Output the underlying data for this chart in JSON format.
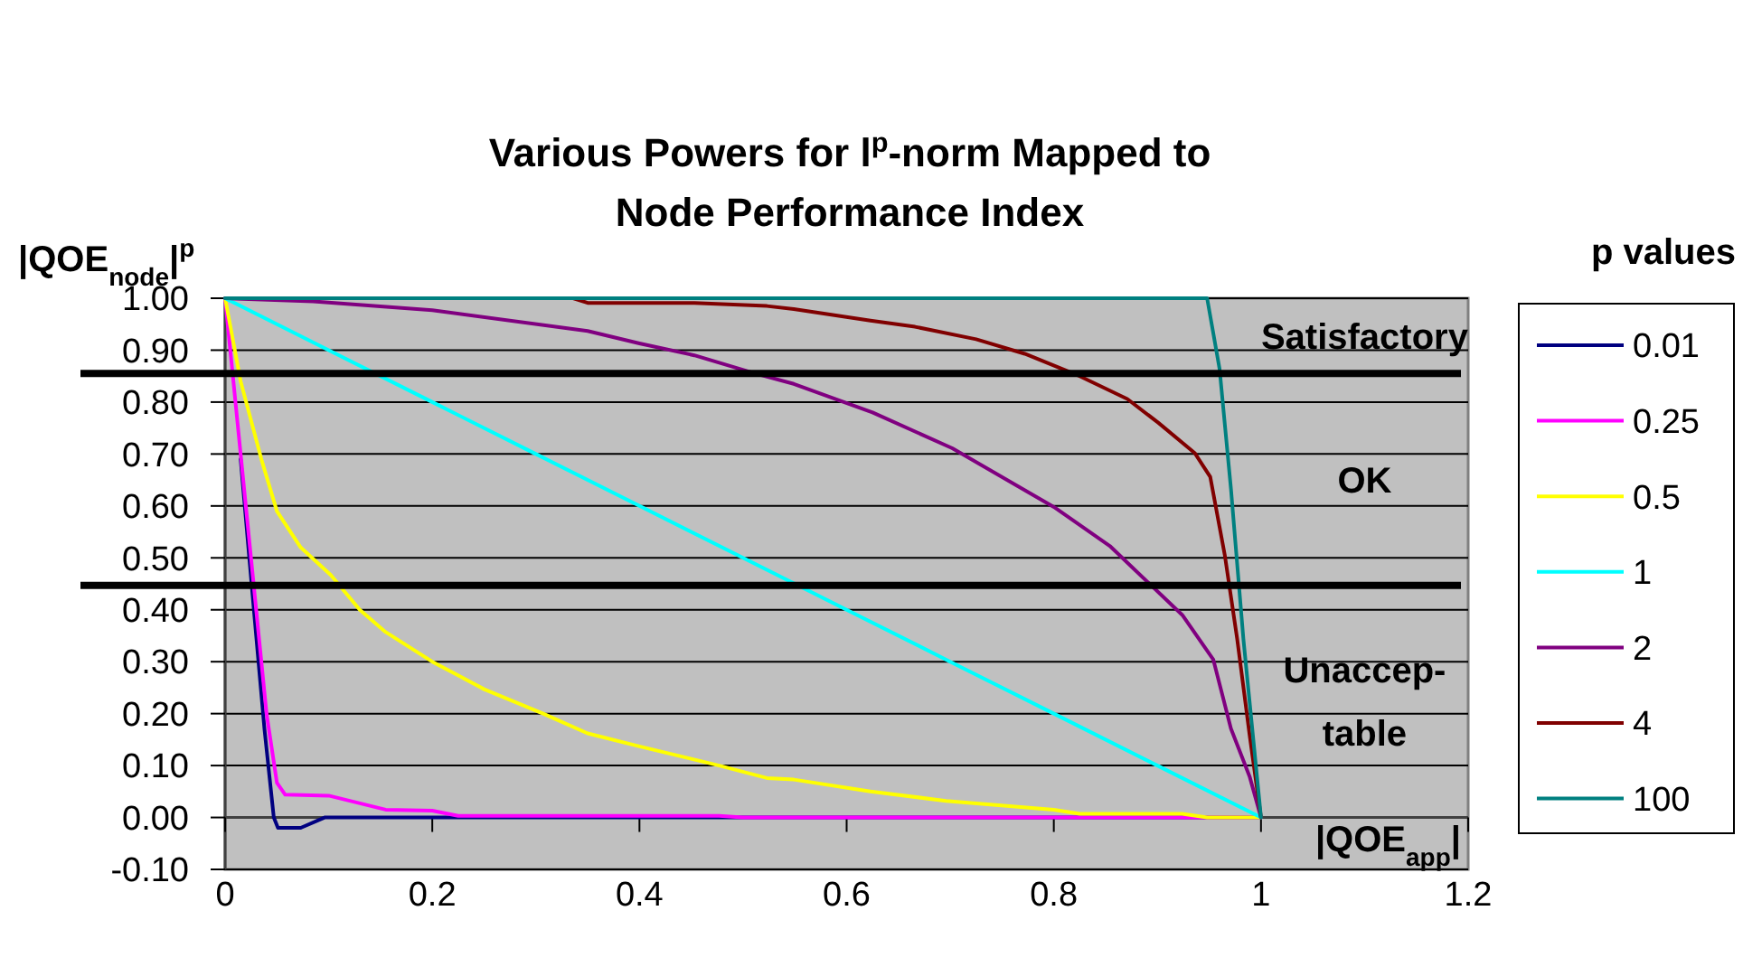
{
  "chart_data": {
    "type": "line",
    "title": "Various Powers for l$^{p}$-norm Mapped to Node Performance Index",
    "xlabel": "|QOE$_{app}$|",
    "ylabel": "|QOE$_{node}$|$^{p}$",
    "legend_title": "p values",
    "xlim": [
      0,
      1.2
    ],
    "xticks": [
      0,
      0.2,
      0.4,
      0.6,
      0.8,
      1,
      1.2
    ],
    "ylim": [
      -0.1,
      1
    ],
    "yticks": [
      {
        "value": -0.1,
        "label": "-0.10"
      },
      {
        "value": 0,
        "label": "0.00"
      },
      {
        "value": 0.1,
        "label": "0.10"
      },
      {
        "value": 0.2,
        "label": "0.20"
      },
      {
        "value": 0.3,
        "label": "0.30"
      },
      {
        "value": 0.4,
        "label": "0.40"
      },
      {
        "value": 0.5,
        "label": "0.50"
      },
      {
        "value": 0.6,
        "label": "0.60"
      },
      {
        "value": 0.7,
        "label": "0.70"
      },
      {
        "value": 0.8,
        "label": "0.80"
      },
      {
        "value": 0.9,
        "label": "0.90"
      },
      {
        "value": 1,
        "label": "1.00"
      }
    ],
    "grid": "y",
    "legend": "right",
    "marker": "none",
    "line_style": "solid",
    "ref_lines": [
      {
        "axis": "y",
        "value": 0.855,
        "color": "#000000"
      },
      {
        "axis": "y",
        "value": 0.447,
        "color": "#000000"
      }
    ],
    "annotations": [
      "Satisfactory",
      "OK",
      "Unaccep-\ntable"
    ],
    "series": [
      {
        "name": "0.01",
        "color": "#000080",
        "x": [
          0.015,
          0.026,
          0.038,
          0.047,
          0.051,
          0.073,
          0.096,
          0.2,
          0.5,
          1
        ],
        "values": [
          0.69,
          0.44,
          0.17,
          0,
          -0.02,
          -0.02,
          0,
          0,
          0,
          0
        ]
      },
      {
        "name": "0.25",
        "color": "#ff00ff",
        "x": [
          0,
          0.015,
          0.03,
          0.04,
          0.05,
          0.058,
          0.1,
          0.155,
          0.2,
          0.225,
          0.477,
          0.5,
          1
        ],
        "values": [
          1,
          0.7,
          0.4,
          0.2,
          0.067,
          0.044,
          0.042,
          0.015,
          0.013,
          0.003,
          0.003,
          0,
          0
        ]
      },
      {
        "name": "0.5",
        "color": "#ffff00",
        "x": [
          0,
          0.015,
          0.035,
          0.05,
          0.073,
          0.102,
          0.13,
          0.155,
          0.2,
          0.25,
          0.307,
          0.35,
          0.4,
          0.477,
          0.523,
          0.549,
          0.623,
          0.696,
          0.8,
          0.825,
          0.924,
          0.948,
          1
        ],
        "values": [
          1,
          0.84,
          0.69,
          0.59,
          0.52,
          0.467,
          0.4,
          0.357,
          0.3,
          0.247,
          0.2,
          0.162,
          0.137,
          0.1,
          0.076,
          0.073,
          0.05,
          0.032,
          0.015,
          0.007,
          0.007,
          0,
          0
        ]
      },
      {
        "name": "1",
        "color": "#00ffff",
        "x": [
          0,
          0.05,
          0.1,
          0.2,
          0.3,
          0.4,
          0.5,
          0.6,
          0.7,
          0.8,
          0.9,
          1
        ],
        "values": [
          1,
          0.95,
          0.9,
          0.8,
          0.7,
          0.6,
          0.5,
          0.4,
          0.3,
          0.2,
          0.1,
          0
        ]
      },
      {
        "name": "2",
        "color": "#800080",
        "x": [
          0,
          0.085,
          0.2,
          0.35,
          0.4,
          0.453,
          0.512,
          0.549,
          0.625,
          0.702,
          0.8,
          0.854,
          0.924,
          0.954,
          0.971,
          0.989,
          1
        ],
        "values": [
          1,
          0.994,
          0.977,
          0.937,
          0.913,
          0.89,
          0.855,
          0.835,
          0.78,
          0.711,
          0.598,
          0.523,
          0.39,
          0.304,
          0.171,
          0.079,
          0
        ]
      },
      {
        "name": "4",
        "color": "#800000",
        "x": [
          0.336,
          0.35,
          0.453,
          0.523,
          0.549,
          0.623,
          0.666,
          0.725,
          0.772,
          0.825,
          0.871,
          0.901,
          0.936,
          0.951,
          0.965,
          0.977,
          0.989,
          1
        ],
        "values": [
          1,
          0.991,
          0.991,
          0.985,
          0.979,
          0.957,
          0.945,
          0.921,
          0.893,
          0.85,
          0.806,
          0.76,
          0.702,
          0.656,
          0.506,
          0.344,
          0.159,
          0
        ]
      },
      {
        "name": "100",
        "color": "#008080",
        "x": [
          0,
          0.5,
          0.948,
          0.96,
          0.971,
          0.983,
          1
        ],
        "values": [
          1,
          1,
          1,
          0.864,
          0.633,
          0.344,
          0
        ]
      }
    ]
  }
}
